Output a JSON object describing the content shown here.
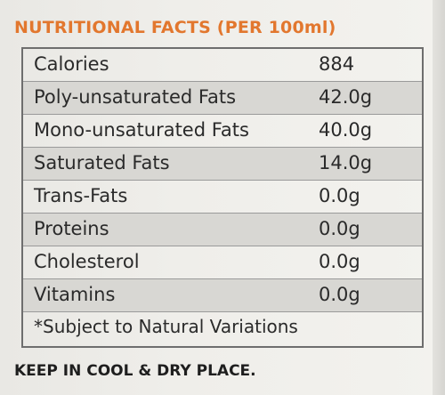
{
  "title": "NUTRITIONAL FACTS (PER 100ml)",
  "rows": [
    {
      "name": "Calories",
      "value": "884"
    },
    {
      "name": "Poly-unsaturated Fats",
      "value": "42.0g"
    },
    {
      "name": "Mono-unsaturated Fats",
      "value": "40.0g"
    },
    {
      "name": "Saturated Fats",
      "value": "14.0g"
    },
    {
      "name": "Trans-Fats",
      "value": "0.0g"
    },
    {
      "name": "Proteins",
      "value": "0.0g"
    },
    {
      "name": "Cholesterol",
      "value": "0.0g"
    },
    {
      "name": "Vitamins",
      "value": "0.0g"
    }
  ],
  "note": "*Subject to Natural Variations",
  "storage": "KEEP IN COOL & DRY PLACE.",
  "colors": {
    "title": "#e2772e",
    "shade": "#d8d7d3",
    "text": "#2a2a2a"
  }
}
